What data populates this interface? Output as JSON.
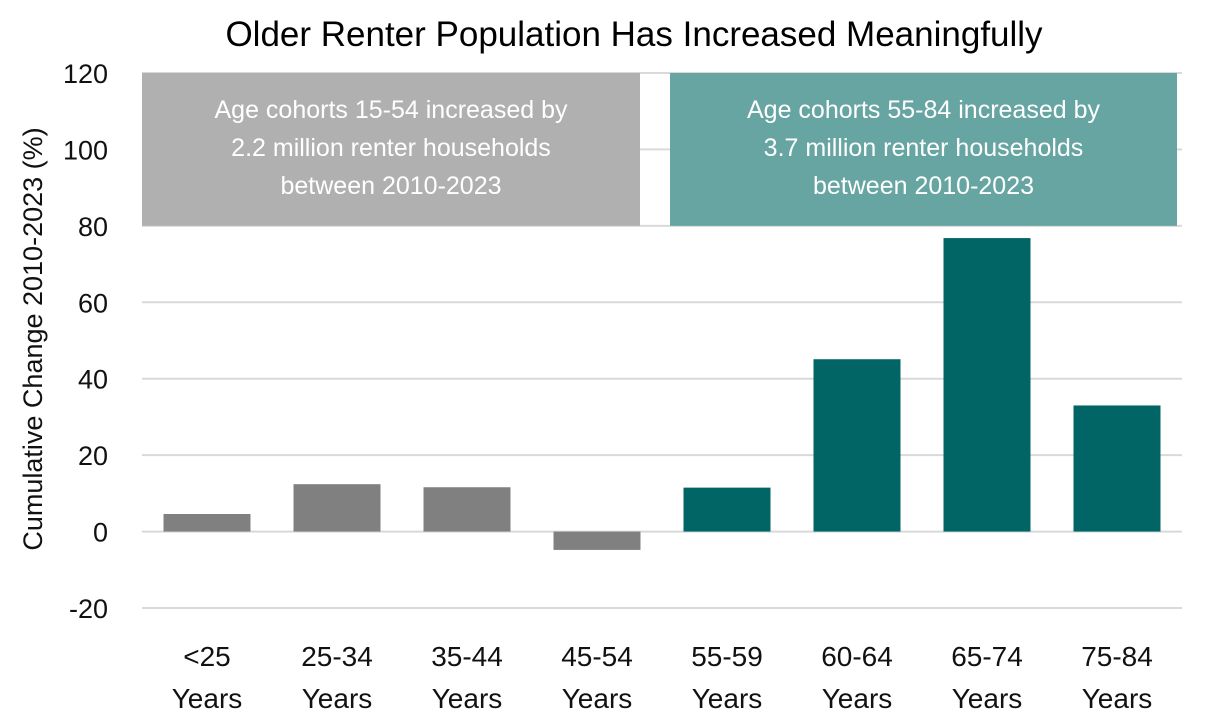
{
  "chart_data": {
    "type": "bar",
    "title": "Older Renter Population Has Increased Meaningfully",
    "ylabel": "Cumulative Change 2010-2023 (%)",
    "xlabel": "",
    "ylim": [
      -20,
      120
    ],
    "yticks": [
      -20,
      0,
      20,
      40,
      60,
      80,
      100,
      120
    ],
    "grid": true,
    "categories": [
      [
        "<25",
        "Years"
      ],
      [
        "25-34",
        "Years"
      ],
      [
        "35-44",
        "Years"
      ],
      [
        "45-54",
        "Years"
      ],
      [
        "55-59",
        "Years"
      ],
      [
        "60-64",
        "Years"
      ],
      [
        "65-74",
        "Years"
      ],
      [
        "75-84",
        "Years"
      ]
    ],
    "values": [
      4.6,
      12.4,
      11.6,
      -4.8,
      11.5,
      45.1,
      76.8,
      33.0
    ],
    "bar_colors": [
      "#808080",
      "#808080",
      "#808080",
      "#808080",
      "#006564",
      "#006564",
      "#006564",
      "#006564"
    ],
    "annotations": [
      {
        "lines": [
          "Age cohorts 15-54 increased by",
          "2.2 million renter households",
          "between 2010-2023"
        ],
        "color": "#b0b0b0"
      },
      {
        "lines": [
          "Age cohorts 55-84 increased by",
          "3.7 million renter households",
          "between 2010-2023"
        ],
        "color": "#67a5a2"
      }
    ]
  }
}
